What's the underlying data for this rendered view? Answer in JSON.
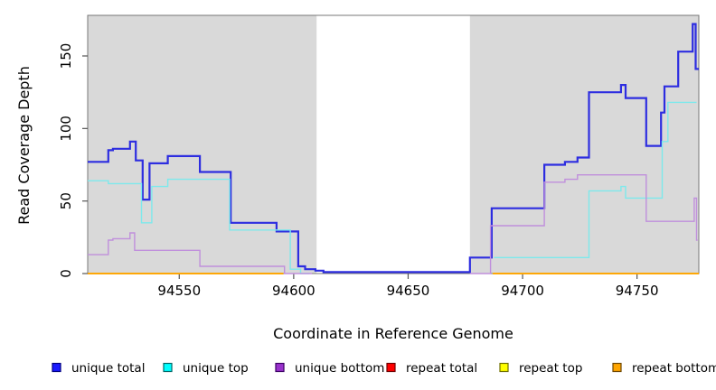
{
  "chart_data": {
    "type": "line",
    "subtype": "step-coverage",
    "title": "",
    "xlabel": "Coordinate in Reference Genome",
    "ylabel": "Read Coverage Depth",
    "xlim": [
      94510,
      94777
    ],
    "ylim": [
      0,
      178
    ],
    "x_ticks": [
      94550,
      94600,
      94650,
      94700,
      94750
    ],
    "x_tick_labels": [
      "94550",
      "94600",
      "94650",
      "94700",
      "94750"
    ],
    "y_ticks": [
      0,
      50,
      100,
      150
    ],
    "y_tick_labels": [
      "0",
      "50",
      "100",
      "150"
    ],
    "grid": false,
    "panel_bg": "#d9d9d9",
    "figure_bg": "#ffffff",
    "box_color": "#777777",
    "tick_color": "#555555",
    "masked_region": {
      "start": 94610,
      "end": 94677,
      "fill": "#ffffff"
    },
    "legend_position": "bottom",
    "series": [
      {
        "name": "unique total",
        "color": "#2d2de0",
        "legend_fill": "#1a1aff",
        "legend_border": "#000080",
        "width": 2.2,
        "segments": [
          {
            "points": [
              [
                94510,
                77
              ],
              [
                94519,
                85
              ],
              [
                94521,
                86
              ],
              [
                94528.5,
                91
              ],
              [
                94531,
                78
              ],
              [
                94534,
                51
              ],
              [
                94537,
                76
              ],
              [
                94545,
                81
              ],
              [
                94559,
                70
              ],
              [
                94572.5,
                35
              ],
              [
                94592.5,
                29
              ],
              [
                94602,
                5
              ],
              [
                94605,
                3
              ],
              [
                94609.5,
                2
              ],
              [
                94613,
                1
              ],
              [
                94677,
                11
              ],
              [
                94686.5,
                45
              ],
              [
                94709.5,
                75
              ],
              [
                94718.5,
                77
              ],
              [
                94724,
                80
              ],
              [
                94729,
                125
              ],
              [
                94743,
                130
              ],
              [
                94745,
                121
              ],
              [
                94754,
                88
              ],
              [
                94760.5,
                111
              ],
              [
                94762,
                129
              ],
              [
                94768,
                153
              ],
              [
                94774.3,
                172
              ],
              [
                94775.6,
                141
              ]
            ],
            "end": 94777
          }
        ]
      },
      {
        "name": "unique top",
        "color": "#7de9ec",
        "legend_fill": "#00ffff",
        "legend_border": "#006868",
        "width": 1.4,
        "segments": [
          {
            "points": [
              [
                94510,
                64
              ],
              [
                94519,
                62
              ],
              [
                94533.5,
                35
              ],
              [
                94538,
                60
              ],
              [
                94545,
                65
              ],
              [
                94572,
                30
              ],
              [
                94598.5,
                3
              ],
              [
                94603,
                0
              ]
            ],
            "end": 94607
          },
          {
            "points": [
              [
                94687.5,
                11
              ],
              [
                94729,
                57
              ],
              [
                94743,
                60
              ],
              [
                94745,
                52
              ],
              [
                94761,
                91
              ],
              [
                94763.5,
                118
              ]
            ],
            "end": 94776
          }
        ]
      },
      {
        "name": "unique bottom",
        "color": "#c08fdc",
        "legend_fill": "#9932cc",
        "legend_border": "#3d0066",
        "width": 1.4,
        "segments": [
          {
            "points": [
              [
                94510,
                13
              ],
              [
                94519,
                23
              ],
              [
                94521,
                24
              ],
              [
                94528.5,
                28
              ],
              [
                94530.5,
                16
              ],
              [
                94559,
                5
              ],
              [
                94596,
                0
              ]
            ],
            "end": 94608
          },
          {
            "points": [
              [
                94677,
                0
              ],
              [
                94686,
                33
              ],
              [
                94709.5,
                63
              ],
              [
                94718.5,
                65
              ],
              [
                94724,
                68
              ],
              [
                94754,
                36
              ],
              [
                94775,
                52
              ],
              [
                94776,
                23
              ]
            ],
            "end": 94776.5
          }
        ]
      },
      {
        "name": "repeat total",
        "color": "#e00000",
        "legend_fill": "#ff0000",
        "legend_border": "#700000",
        "width": 1.4,
        "segments": [
          {
            "points": [
              [
                94510,
                0
              ]
            ],
            "end": 94595.5
          },
          {
            "points": [
              [
                94687,
                0
              ]
            ],
            "end": 94777
          }
        ]
      },
      {
        "name": "repeat top",
        "color": "#ffff00",
        "legend_fill": "#ffff00",
        "legend_border": "#707000",
        "width": 1.4,
        "segments": [
          {
            "points": [
              [
                94510,
                0
              ]
            ],
            "end": 94595.5
          },
          {
            "points": [
              [
                94687,
                0
              ]
            ],
            "end": 94777
          }
        ]
      },
      {
        "name": "repeat bottom",
        "color": "#ffa500",
        "legend_fill": "#ffa500",
        "legend_border": "#704800",
        "width": 1.8,
        "segments": [
          {
            "points": [
              [
                94510,
                0
              ]
            ],
            "end": 94595.5
          },
          {
            "points": [
              [
                94687,
                0
              ]
            ],
            "end": 94777
          }
        ]
      }
    ],
    "legend": [
      "unique total",
      "unique top",
      "unique bottom",
      "repeat total",
      "repeat top",
      "repeat bottom"
    ]
  }
}
